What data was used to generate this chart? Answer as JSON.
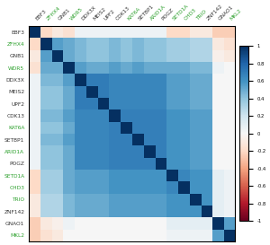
{
  "genes": [
    "EBF3",
    "ZFHX4",
    "GNB1",
    "WDR5",
    "DDX3X",
    "MEIS2",
    "UPF2",
    "CDK13",
    "KAT6A",
    "SETBP1",
    "ARID1A",
    "POGZ",
    "SETD1A",
    "CHD3",
    "TRIO",
    "ZNF142",
    "GNAO1",
    "MKL2"
  ],
  "green_genes": [
    "ZFHX4",
    "WDR5",
    "KAT6A",
    "ARID1A",
    "SETD1A",
    "CHD3",
    "TRIO",
    "MKL2"
  ],
  "vmin": -1,
  "vmax": 1,
  "figsize": [
    3.0,
    2.73
  ],
  "dpi": 100,
  "matrix": [
    [
      1.0,
      -0.2,
      -0.1,
      -0.15,
      0.05,
      0.05,
      0.05,
      0.05,
      0.05,
      0.05,
      0.05,
      0.05,
      -0.2,
      -0.2,
      -0.1,
      -0.1,
      -0.25,
      -0.25
    ],
    [
      -0.2,
      1.0,
      0.55,
      0.5,
      0.45,
      0.4,
      0.4,
      0.45,
      0.4,
      0.45,
      0.4,
      0.4,
      0.35,
      0.35,
      0.3,
      0.3,
      -0.1,
      -0.15
    ],
    [
      -0.1,
      0.55,
      1.0,
      0.5,
      0.45,
      0.4,
      0.4,
      0.45,
      0.4,
      0.45,
      0.4,
      0.4,
      0.35,
      0.35,
      0.3,
      0.3,
      -0.05,
      -0.1
    ],
    [
      -0.15,
      0.5,
      0.5,
      1.0,
      0.55,
      0.5,
      0.5,
      0.55,
      0.5,
      0.55,
      0.5,
      0.5,
      0.5,
      0.5,
      0.45,
      0.45,
      0.05,
      0.0
    ],
    [
      0.05,
      0.45,
      0.45,
      0.55,
      1.0,
      0.7,
      0.7,
      0.65,
      0.65,
      0.65,
      0.65,
      0.65,
      0.55,
      0.55,
      0.5,
      0.5,
      0.0,
      0.0
    ],
    [
      0.05,
      0.4,
      0.4,
      0.5,
      0.7,
      1.0,
      0.7,
      0.65,
      0.65,
      0.65,
      0.65,
      0.65,
      0.55,
      0.55,
      0.5,
      0.5,
      0.0,
      0.0
    ],
    [
      0.05,
      0.4,
      0.4,
      0.5,
      0.7,
      0.7,
      1.0,
      0.65,
      0.65,
      0.65,
      0.65,
      0.65,
      0.55,
      0.55,
      0.5,
      0.5,
      0.0,
      0.0
    ],
    [
      0.05,
      0.45,
      0.45,
      0.55,
      0.65,
      0.65,
      0.65,
      1.0,
      0.68,
      0.68,
      0.68,
      0.68,
      0.6,
      0.6,
      0.55,
      0.55,
      0.0,
      0.0
    ],
    [
      0.05,
      0.4,
      0.4,
      0.5,
      0.65,
      0.65,
      0.65,
      0.68,
      1.0,
      0.68,
      0.68,
      0.68,
      0.6,
      0.6,
      0.55,
      0.55,
      0.0,
      0.0
    ],
    [
      0.05,
      0.45,
      0.45,
      0.55,
      0.65,
      0.65,
      0.65,
      0.68,
      0.68,
      1.0,
      0.68,
      0.68,
      0.6,
      0.6,
      0.55,
      0.55,
      0.0,
      0.0
    ],
    [
      0.05,
      0.4,
      0.4,
      0.5,
      0.65,
      0.65,
      0.65,
      0.68,
      0.68,
      0.68,
      1.0,
      0.68,
      0.6,
      0.6,
      0.55,
      0.55,
      0.0,
      0.0
    ],
    [
      0.05,
      0.4,
      0.4,
      0.5,
      0.65,
      0.65,
      0.65,
      0.68,
      0.68,
      0.68,
      0.68,
      1.0,
      0.6,
      0.6,
      0.55,
      0.55,
      0.0,
      0.0
    ],
    [
      -0.2,
      0.35,
      0.35,
      0.5,
      0.55,
      0.55,
      0.55,
      0.6,
      0.6,
      0.6,
      0.6,
      0.6,
      1.0,
      0.65,
      0.6,
      0.6,
      0.1,
      0.05
    ],
    [
      -0.2,
      0.35,
      0.35,
      0.5,
      0.55,
      0.55,
      0.55,
      0.6,
      0.6,
      0.6,
      0.6,
      0.6,
      0.65,
      1.0,
      0.6,
      0.6,
      0.1,
      0.05
    ],
    [
      -0.1,
      0.3,
      0.3,
      0.45,
      0.5,
      0.5,
      0.5,
      0.55,
      0.55,
      0.55,
      0.55,
      0.55,
      0.6,
      0.6,
      1.0,
      0.6,
      0.1,
      0.05
    ],
    [
      -0.1,
      0.3,
      0.3,
      0.45,
      0.5,
      0.5,
      0.5,
      0.55,
      0.55,
      0.55,
      0.55,
      0.55,
      0.6,
      0.6,
      0.6,
      1.0,
      0.1,
      0.05
    ],
    [
      -0.25,
      -0.1,
      -0.05,
      0.05,
      0.0,
      0.0,
      0.0,
      0.0,
      0.0,
      0.0,
      0.0,
      0.0,
      0.1,
      0.1,
      0.1,
      0.1,
      1.0,
      0.55
    ],
    [
      -0.25,
      -0.15,
      -0.1,
      0.0,
      0.0,
      0.0,
      0.0,
      0.0,
      0.0,
      0.0,
      0.0,
      0.0,
      0.05,
      0.05,
      0.05,
      0.05,
      0.55,
      1.0
    ]
  ]
}
